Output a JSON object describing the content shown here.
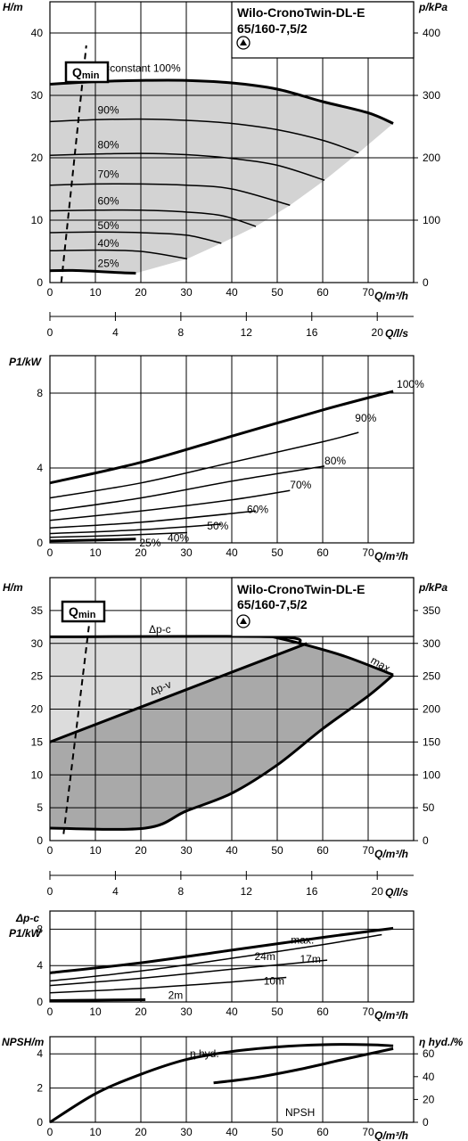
{
  "header": {
    "title_line1": "Wilo-CronoTwin-DL-E",
    "title_line2": "65/160-7,5/2"
  },
  "labels": {
    "qmin_q": "Q",
    "qmin_sub": "min",
    "dp_c": "Δp-c",
    "dp_v": "Δp-v",
    "max": "max.",
    "eta_hyd": "η hyd.",
    "npsh": "NPSH"
  },
  "axes": {
    "H": "H/m",
    "p": "p/kPa",
    "P1": "P1/kW",
    "dpc": "Δp-c",
    "Q_m3h": "Q/m³/h",
    "Q_ls": "Q/l/s",
    "NPSH": "NPSH/m",
    "eta": "η hyd./%"
  },
  "chart_data": [
    {
      "id": "regulating-variable-speed-H",
      "type": "line",
      "xlabel": "Q/m³/h",
      "ylabel": "H/m",
      "y2label": "p/kPa",
      "xlim": [
        0,
        80
      ],
      "ylim": [
        0,
        45
      ],
      "y2lim": [
        0,
        450
      ],
      "xticks": [
        0,
        10,
        20,
        30,
        40,
        50,
        60,
        70
      ],
      "yticks": [
        0,
        10,
        20,
        30,
        40
      ],
      "y2ticks": [
        0,
        100,
        200,
        300,
        400
      ],
      "secondary_x": {
        "label": "Q/l/s",
        "ticks": [
          0,
          4,
          8,
          12,
          16,
          20
        ]
      },
      "qmin_line": [
        [
          2.5,
          0
        ],
        [
          8,
          38
        ]
      ],
      "shaded_region": true,
      "series": [
        {
          "name": "n=constant 100%",
          "bold": true,
          "x": [
            0,
            10,
            20,
            30,
            40,
            50,
            60,
            70,
            75.5
          ],
          "y": [
            31.8,
            32.2,
            32.4,
            32.4,
            32.0,
            31.0,
            29.0,
            27.2,
            25.5
          ]
        },
        {
          "name": "90%",
          "x": [
            0,
            10,
            20,
            30,
            40,
            50,
            60,
            67.9
          ],
          "y": [
            25.8,
            26.1,
            26.2,
            26.0,
            25.5,
            24.5,
            22.8,
            20.8
          ]
        },
        {
          "name": "80%",
          "x": [
            0,
            10,
            20,
            30,
            40,
            50,
            60.4
          ],
          "y": [
            20.4,
            20.6,
            20.7,
            20.5,
            19.9,
            18.8,
            16.4
          ]
        },
        {
          "name": "70%",
          "x": [
            0,
            10,
            20,
            30,
            40,
            52.8
          ],
          "y": [
            15.6,
            15.8,
            15.8,
            15.6,
            15.0,
            12.4
          ]
        },
        {
          "name": "60%",
          "x": [
            0,
            10,
            20,
            30,
            38,
            45.3
          ],
          "y": [
            11.5,
            11.6,
            11.6,
            11.3,
            10.7,
            9.0
          ]
        },
        {
          "name": "50%",
          "x": [
            0,
            10,
            20,
            30,
            37.7
          ],
          "y": [
            8.0,
            8.1,
            8.0,
            7.6,
            6.3
          ]
        },
        {
          "name": "40%",
          "x": [
            0,
            10,
            20,
            30.2
          ],
          "y": [
            5.1,
            5.2,
            5.0,
            3.8
          ]
        },
        {
          "name": "25%",
          "bold": true,
          "x": [
            0,
            5,
            10,
            15,
            18.9
          ],
          "y": [
            1.9,
            1.95,
            1.8,
            1.6,
            1.5
          ]
        }
      ]
    },
    {
      "id": "regulating-variable-speed-P1",
      "type": "line",
      "xlabel": "Q/m³/h",
      "ylabel": "P1/kW",
      "xlim": [
        0,
        80
      ],
      "ylim": [
        0,
        10
      ],
      "xticks": [
        0,
        10,
        20,
        30,
        40,
        50,
        60,
        70
      ],
      "yticks": [
        0,
        4,
        8
      ],
      "series": [
        {
          "name": "100%",
          "bold": true,
          "x": [
            0,
            20,
            40,
            60,
            75.5
          ],
          "y": [
            3.2,
            4.3,
            5.7,
            7.1,
            8.1
          ]
        },
        {
          "name": "90%",
          "x": [
            0,
            20,
            40,
            60,
            67.9
          ],
          "y": [
            2.4,
            3.2,
            4.3,
            5.4,
            5.9
          ]
        },
        {
          "name": "80%",
          "x": [
            0,
            20,
            40,
            60.4
          ],
          "y": [
            1.7,
            2.4,
            3.3,
            4.1
          ]
        },
        {
          "name": "70%",
          "x": [
            0,
            20,
            40,
            52.8
          ],
          "y": [
            1.2,
            1.7,
            2.3,
            2.8
          ]
        },
        {
          "name": "60%",
          "x": [
            0,
            20,
            45.3
          ],
          "y": [
            0.8,
            1.1,
            1.7
          ]
        },
        {
          "name": "50%",
          "x": [
            0,
            20,
            37.7
          ],
          "y": [
            0.5,
            0.7,
            1.0
          ]
        },
        {
          "name": "40%",
          "x": [
            0,
            15,
            30.2
          ],
          "y": [
            0.3,
            0.4,
            0.55
          ]
        },
        {
          "name": "25%",
          "bold": true,
          "x": [
            0,
            10,
            18.9
          ],
          "y": [
            0.1,
            0.15,
            0.2
          ]
        }
      ]
    },
    {
      "id": "control-modes-H",
      "type": "area",
      "xlabel": "Q/m³/h",
      "ylabel": "H/m",
      "y2label": "p/kPa",
      "xlim": [
        0,
        80
      ],
      "ylim": [
        0,
        40
      ],
      "y2lim": [
        0,
        400
      ],
      "xticks": [
        0,
        10,
        20,
        30,
        40,
        50,
        60,
        70
      ],
      "yticks": [
        0,
        5,
        10,
        15,
        20,
        25,
        30,
        35
      ],
      "y2ticks": [
        0,
        50,
        100,
        150,
        200,
        250,
        300,
        350
      ],
      "secondary_x": {
        "label": "Q/l/s",
        "ticks": [
          0,
          4,
          8,
          12,
          16,
          20
        ]
      },
      "qmin_line": [
        [
          3,
          1
        ],
        [
          9,
          35
        ]
      ],
      "series": [
        {
          "name": "Δp-c",
          "x": [
            0,
            49,
            55
          ],
          "y": [
            31,
            31,
            30
          ]
        },
        {
          "name": "Δp-v",
          "x": [
            0,
            56.5
          ],
          "y": [
            15,
            30
          ]
        },
        {
          "name": "max.",
          "x": [
            49,
            55,
            65,
            75.5
          ],
          "y": [
            31,
            30,
            28,
            25.2
          ]
        },
        {
          "name": "min",
          "x": [
            0,
            21,
            30,
            40,
            50,
            60,
            70,
            75.5
          ],
          "y": [
            1.9,
            1.9,
            4.5,
            7.2,
            11.5,
            17,
            22,
            25.2
          ]
        }
      ]
    },
    {
      "id": "control-modes-P1",
      "type": "line",
      "xlabel": "Q/m³/h",
      "ylabel": "P1/kW",
      "xlim": [
        0,
        80
      ],
      "ylim": [
        0,
        10
      ],
      "xticks": [
        0,
        10,
        20,
        30,
        40,
        50,
        60,
        70
      ],
      "yticks": [
        0,
        4,
        8
      ],
      "series": [
        {
          "name": "max.",
          "bold": true,
          "x": [
            0,
            20,
            40,
            60,
            75.5
          ],
          "y": [
            3.2,
            4.3,
            5.7,
            7.1,
            8.1
          ]
        },
        {
          "name": "24m",
          "x": [
            0,
            20,
            40,
            60,
            73
          ],
          "y": [
            2.3,
            3.4,
            4.8,
            6.3,
            7.4
          ]
        },
        {
          "name": "17m",
          "x": [
            0,
            20,
            40,
            61
          ],
          "y": [
            1.8,
            2.6,
            3.6,
            4.6
          ]
        },
        {
          "name": "10m",
          "x": [
            0,
            20,
            40,
            52
          ],
          "y": [
            1.0,
            1.5,
            2.2,
            2.7
          ]
        },
        {
          "name": "2m",
          "bold": true,
          "x": [
            0,
            10,
            21
          ],
          "y": [
            0.15,
            0.2,
            0.25
          ]
        }
      ]
    },
    {
      "id": "npsh-efficiency",
      "type": "line",
      "xlabel": "Q/m³/h",
      "ylabel": "NPSH/m",
      "y2label": "η hyd./%",
      "xlim": [
        0,
        80
      ],
      "ylim": [
        0,
        5
      ],
      "y2lim": [
        0,
        75
      ],
      "xticks": [
        0,
        10,
        20,
        30,
        40,
        50,
        60,
        70
      ],
      "yticks": [
        0,
        2,
        4
      ],
      "y2ticks": [
        0,
        20,
        40,
        60
      ],
      "series": [
        {
          "name": "η hyd.",
          "axis": "right",
          "x": [
            0,
            10,
            20,
            30,
            40,
            50,
            60,
            70,
            75.5
          ],
          "y": [
            0,
            25,
            42,
            55,
            62,
            66,
            68,
            68,
            67
          ]
        },
        {
          "name": "NPSH",
          "axis": "left",
          "x": [
            36,
            45,
            55,
            65,
            75.5
          ],
          "y": [
            2.3,
            2.6,
            3.1,
            3.7,
            4.3
          ]
        }
      ]
    }
  ]
}
